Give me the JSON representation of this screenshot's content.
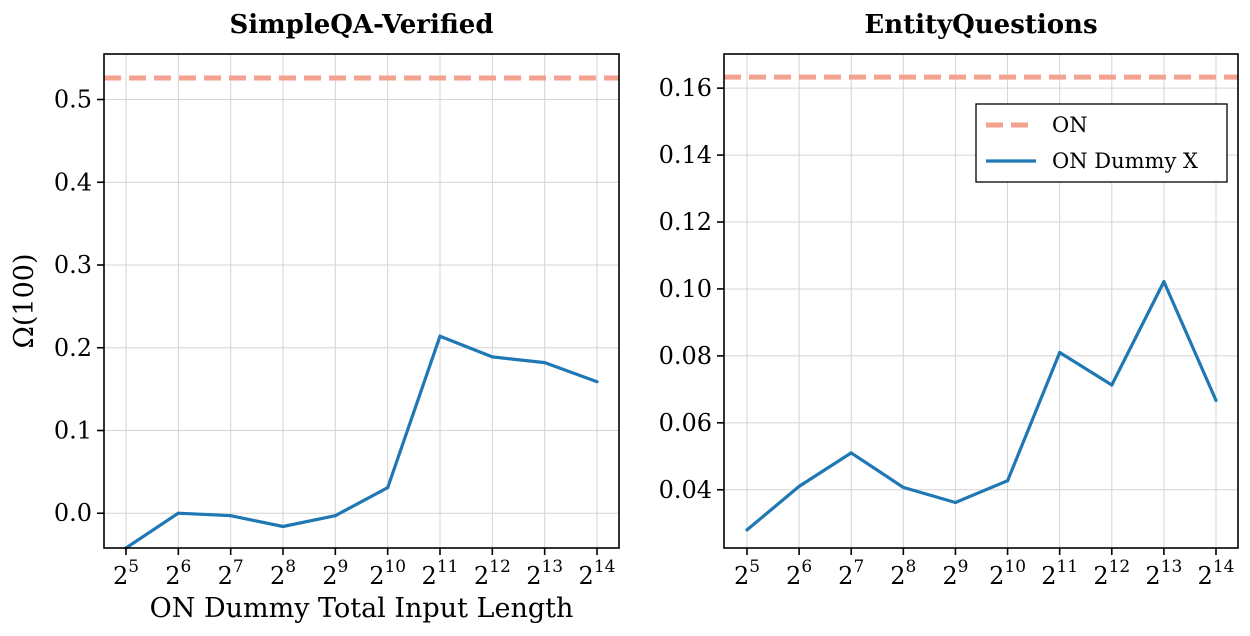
{
  "chart_data": [
    {
      "type": "line",
      "title": "SimpleQA-Verified",
      "xlabel": "ON Dummy Total Input Length",
      "ylabel": "Ω(100)",
      "x_base": "2",
      "x_exponents": [
        "5",
        "6",
        "7",
        "8",
        "9",
        "10",
        "11",
        "12",
        "13",
        "14"
      ],
      "ylim": [
        -0.042,
        0.555
      ],
      "yticks": [
        "0.0",
        "0.1",
        "0.2",
        "0.3",
        "0.4",
        "0.5"
      ],
      "grid": true,
      "series": [
        {
          "name": "ON Dummy X",
          "color": "#1f77b4",
          "style": "solid",
          "values": [
            -0.042,
            0.0,
            -0.003,
            -0.016,
            -0.003,
            0.031,
            0.214,
            0.189,
            0.182,
            0.159
          ]
        }
      ],
      "reference_line": {
        "name": "ON",
        "value": 0.526,
        "color": "#f2a28f",
        "style": "dashed"
      }
    },
    {
      "type": "line",
      "title": "EntityQuestions",
      "xlabel": "",
      "ylabel": "",
      "x_base": "2",
      "x_exponents": [
        "5",
        "6",
        "7",
        "8",
        "9",
        "10",
        "11",
        "12",
        "13",
        "14"
      ],
      "ylim": [
        0.0226,
        0.1702
      ],
      "yticks": [
        "0.04",
        "0.06",
        "0.08",
        "0.10",
        "0.12",
        "0.14",
        "0.16"
      ],
      "grid": true,
      "legend": {
        "location": "upper right",
        "entries": [
          "ON",
          "ON Dummy X"
        ]
      },
      "series": [
        {
          "name": "ON Dummy X",
          "color": "#1f77b4",
          "style": "solid",
          "values": [
            0.028,
            0.041,
            0.051,
            0.0407,
            0.0362,
            0.0427,
            0.081,
            0.0713,
            0.1022,
            0.0667
          ]
        }
      ],
      "reference_line": {
        "name": "ON",
        "value": 0.1633,
        "color": "#f2a28f",
        "style": "dashed"
      }
    }
  ]
}
